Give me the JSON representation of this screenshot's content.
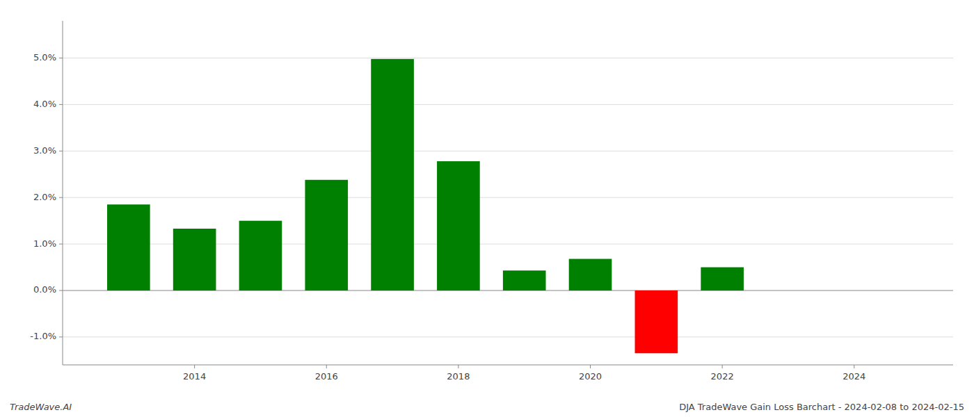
{
  "chart_data": {
    "type": "bar",
    "title": "DJA TradeWave Gain Loss Barchart - 2024-02-08 to 2024-02-15",
    "annotations": [
      "TradeWave.AI"
    ],
    "x": [
      2013,
      2014,
      2015,
      2016,
      2017,
      2018,
      2019,
      2020,
      2021,
      2022
    ],
    "values": [
      0.0185,
      0.0133,
      0.015,
      0.0238,
      0.0498,
      0.0278,
      0.0043,
      0.0068,
      -0.0135,
      0.005
    ],
    "colors": [
      "#008000",
      "#008000",
      "#008000",
      "#008000",
      "#008000",
      "#008000",
      "#008000",
      "#008000",
      "#ff0000",
      "#008000"
    ],
    "xlim": [
      2012.0,
      2025.5
    ],
    "ylim": [
      -0.016,
      0.058
    ],
    "xticks": [
      2014,
      2016,
      2018,
      2020,
      2022,
      2024
    ],
    "yticks": [
      {
        "value": -0.01,
        "label": "-1.0%"
      },
      {
        "value": 0.0,
        "label": "0.0%"
      },
      {
        "value": 0.01,
        "label": "1.0%"
      },
      {
        "value": 0.02,
        "label": "2.0%"
      },
      {
        "value": 0.03,
        "label": "3.0%"
      },
      {
        "value": 0.04,
        "label": "4.0%"
      },
      {
        "value": 0.05,
        "label": "5.0%"
      }
    ],
    "grid": true
  }
}
